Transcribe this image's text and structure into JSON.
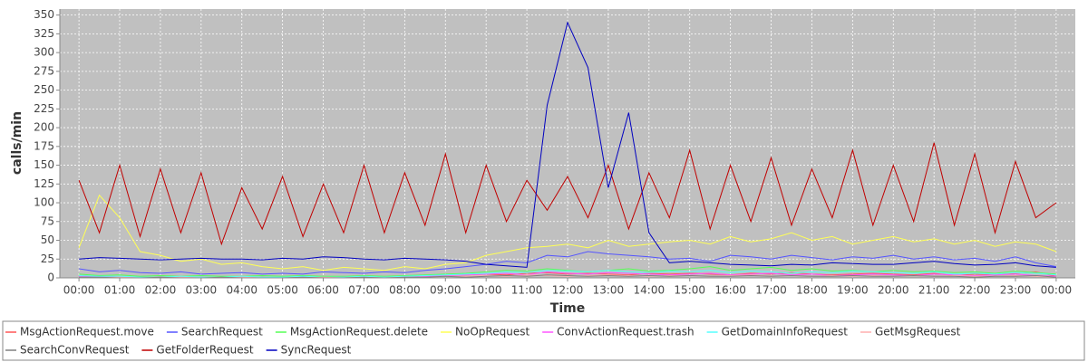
{
  "chart_data": {
    "type": "line",
    "y_label": "calls/min",
    "x_label": "Time",
    "x": [
      0,
      0.5,
      1,
      1.5,
      2,
      2.5,
      3,
      3.5,
      4,
      4.5,
      5,
      5.5,
      6,
      6.5,
      7,
      7.5,
      8,
      8.5,
      9,
      9.5,
      10,
      10.5,
      11,
      11.5,
      12,
      12.5,
      13,
      13.5,
      14,
      14.5,
      15,
      15.5,
      16,
      16.5,
      17,
      17.5,
      18,
      18.5,
      19,
      19.5,
      20,
      20.5,
      21,
      21.5,
      22,
      22.5,
      23,
      23.5,
      24
    ],
    "xlim": [
      -0.47,
      24.47
    ],
    "xticks": [
      {
        "value": 0,
        "label": "00:00"
      },
      {
        "value": 1,
        "label": "01:00"
      },
      {
        "value": 2,
        "label": "02:00"
      },
      {
        "value": 3,
        "label": "03:00"
      },
      {
        "value": 4,
        "label": "04:00"
      },
      {
        "value": 5,
        "label": "05:00"
      },
      {
        "value": 6,
        "label": "06:00"
      },
      {
        "value": 7,
        "label": "07:00"
      },
      {
        "value": 8,
        "label": "08:00"
      },
      {
        "value": 9,
        "label": "09:00"
      },
      {
        "value": 10,
        "label": "10:00"
      },
      {
        "value": 11,
        "label": "11:00"
      },
      {
        "value": 12,
        "label": "12:00"
      },
      {
        "value": 13,
        "label": "13:00"
      },
      {
        "value": 14,
        "label": "14:00"
      },
      {
        "value": 15,
        "label": "15:00"
      },
      {
        "value": 16,
        "label": "16:00"
      },
      {
        "value": 17,
        "label": "17:00"
      },
      {
        "value": 18,
        "label": "18:00"
      },
      {
        "value": 19,
        "label": "19:00"
      },
      {
        "value": 20,
        "label": "20:00"
      },
      {
        "value": 21,
        "label": "21:00"
      },
      {
        "value": 22,
        "label": "22:00"
      },
      {
        "value": 23,
        "label": "23:00"
      },
      {
        "value": 24,
        "label": "00:00"
      }
    ],
    "ylim": [
      0,
      358
    ],
    "yticks": [
      0,
      25,
      50,
      75,
      100,
      125,
      150,
      175,
      200,
      225,
      250,
      275,
      300,
      325,
      350
    ],
    "grid": true,
    "legend": "bottom",
    "series": [
      {
        "name": "MsgActionRequest.move",
        "color": "#ff5555",
        "values": [
          3,
          2,
          1,
          1,
          0,
          1,
          0,
          1,
          0,
          1,
          0,
          1,
          0,
          1,
          1,
          0,
          1,
          2,
          3,
          4,
          5,
          4,
          6,
          7,
          5,
          6,
          5,
          4,
          6,
          5,
          6,
          5,
          4,
          6,
          5,
          7,
          5,
          4,
          5,
          6,
          5,
          4,
          6,
          3,
          5,
          4,
          6,
          8,
          2
        ]
      },
      {
        "name": "SearchRequest",
        "color": "#5555ff",
        "values": [
          12,
          8,
          10,
          7,
          6,
          8,
          5,
          6,
          7,
          5,
          6,
          5,
          8,
          7,
          6,
          8,
          7,
          10,
          12,
          15,
          18,
          22,
          20,
          30,
          28,
          35,
          32,
          30,
          28,
          25,
          26,
          22,
          30,
          28,
          25,
          30,
          27,
          24,
          28,
          26,
          30,
          25,
          28,
          24,
          26,
          22,
          28,
          20,
          15
        ]
      },
      {
        "name": "MsgActionRequest.delete",
        "color": "#55ff55",
        "values": [
          5,
          3,
          4,
          2,
          3,
          2,
          3,
          2,
          2,
          3,
          2,
          3,
          2,
          2,
          3,
          2,
          3,
          4,
          5,
          6,
          8,
          10,
          9,
          12,
          10,
          8,
          10,
          12,
          9,
          10,
          12,
          15,
          10,
          12,
          14,
          10,
          12,
          9,
          10,
          8,
          10,
          8,
          9,
          7,
          8,
          6,
          9,
          7,
          5
        ]
      },
      {
        "name": "NoOpRequest",
        "color": "#ffff55",
        "values": [
          40,
          110,
          80,
          35,
          30,
          22,
          25,
          18,
          20,
          15,
          12,
          15,
          10,
          14,
          12,
          10,
          15,
          12,
          18,
          20,
          30,
          35,
          40,
          42,
          45,
          40,
          50,
          42,
          45,
          48,
          50,
          45,
          55,
          48,
          52,
          60,
          50,
          55,
          45,
          50,
          55,
          48,
          52,
          45,
          50,
          42,
          48,
          45,
          35
        ]
      },
      {
        "name": "ConvActionRequest.trash",
        "color": "#ff55ff",
        "values": [
          2,
          1,
          1,
          0,
          1,
          0,
          1,
          0,
          1,
          0,
          0,
          1,
          0,
          1,
          0,
          1,
          1,
          2,
          3,
          4,
          5,
          6,
          4,
          8,
          6,
          5,
          7,
          6,
          5,
          4,
          5,
          6,
          4,
          5,
          6,
          4,
          5,
          3,
          4,
          5,
          4,
          3,
          5,
          4,
          3,
          4,
          5,
          3,
          2
        ]
      },
      {
        "name": "GetDomainInfoRequest",
        "color": "#55ffff",
        "values": [
          3,
          2,
          2,
          1,
          1,
          2,
          1,
          1,
          2,
          1,
          1,
          2,
          1,
          1,
          2,
          1,
          2,
          3,
          4,
          5,
          6,
          8,
          7,
          10,
          9,
          8,
          10,
          8,
          7,
          9,
          8,
          10,
          7,
          9,
          8,
          6,
          8,
          7,
          9,
          8,
          7,
          6,
          8,
          5,
          6,
          5,
          7,
          6,
          4
        ]
      },
      {
        "name": "GetMsgRequest",
        "color": "#ffafaf",
        "values": [
          1,
          0,
          1,
          0,
          0,
          1,
          0,
          0,
          1,
          0,
          0,
          0,
          1,
          0,
          1,
          0,
          1,
          1,
          2,
          2,
          3,
          2,
          4,
          3,
          2,
          3,
          4,
          3,
          2,
          3,
          3,
          2,
          3,
          4,
          2,
          3,
          2,
          3,
          2,
          3,
          2,
          3,
          2,
          3,
          2,
          2,
          3,
          2,
          1
        ]
      },
      {
        "name": "SearchConvRequest",
        "color": "#808080",
        "values": [
          1,
          1,
          0,
          0,
          1,
          0,
          0,
          1,
          0,
          0,
          0,
          1,
          0,
          0,
          1,
          0,
          1,
          1,
          2,
          1,
          2,
          3,
          2,
          4,
          3,
          2,
          3,
          2,
          3,
          2,
          3,
          2,
          2,
          3,
          2,
          3,
          2,
          2,
          3,
          2,
          2,
          3,
          2,
          2,
          1,
          2,
          2,
          3,
          1
        ]
      },
      {
        "name": "GetFolderRequest",
        "color": "#c00000",
        "values": [
          130,
          60,
          150,
          55,
          145,
          60,
          140,
          45,
          120,
          65,
          135,
          55,
          125,
          60,
          150,
          60,
          140,
          70,
          165,
          60,
          150,
          75,
          130,
          90,
          135,
          80,
          150,
          65,
          140,
          80,
          170,
          65,
          150,
          75,
          160,
          70,
          145,
          80,
          170,
          70,
          150,
          75,
          180,
          70,
          165,
          60,
          155,
          80,
          100
        ]
      },
      {
        "name": "SyncRequest",
        "color": "#0000c0",
        "values": [
          25,
          27,
          26,
          25,
          24,
          25,
          26,
          25,
          25,
          24,
          26,
          25,
          28,
          27,
          25,
          24,
          26,
          25,
          24,
          22,
          18,
          16,
          14,
          230,
          340,
          280,
          120,
          220,
          60,
          20,
          22,
          20,
          18,
          17,
          16,
          18,
          17,
          20,
          19,
          18,
          18,
          20,
          22,
          19,
          17,
          18,
          20,
          16,
          14
        ]
      }
    ]
  }
}
